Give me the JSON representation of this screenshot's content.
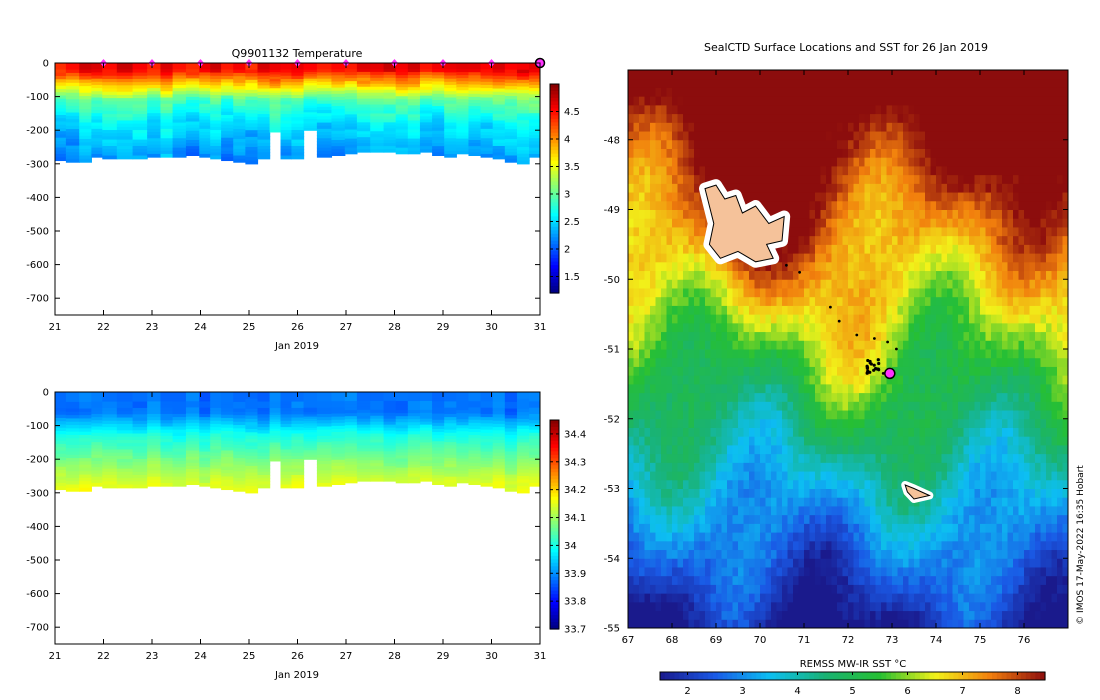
{
  "chart_data": [
    {
      "type": "heatmap",
      "title": "Q9901132  Temperature",
      "xlabel": "Jan 2019",
      "ylabel": "",
      "xlim": [
        21,
        31
      ],
      "ylim": [
        -750,
        0
      ],
      "x_ticks": [
        "21",
        "22",
        "23",
        "24",
        "25",
        "26",
        "27",
        "28",
        "29",
        "30",
        "31"
      ],
      "y_ticks": [
        "0",
        "-100",
        "-200",
        "-300",
        "-400",
        "-500",
        "-600",
        "-700"
      ],
      "colorbar_ticks": [
        "1.5",
        "2",
        "2.5",
        "3",
        "3.5",
        "4",
        "4.5"
      ],
      "colorbar_range": [
        1.2,
        5.0
      ],
      "surface_markers_x": [
        22,
        23,
        24,
        25,
        26,
        27,
        28,
        29,
        30,
        31
      ],
      "profile_x": [
        21.1,
        21.35,
        21.65,
        21.85,
        22.1,
        22.45,
        22.75,
        23.05,
        23.3,
        23.55,
        23.85,
        24.1,
        24.3,
        24.55,
        24.8,
        25.05,
        25.3,
        25.55,
        25.75,
        26.0,
        26.25,
        26.55,
        26.85,
        27.1,
        27.35,
        27.65,
        27.9,
        28.15,
        28.4,
        28.65,
        28.9,
        29.15,
        29.4,
        29.65,
        29.9,
        30.15,
        30.4,
        30.65,
        30.9
      ],
      "profile_depth": [
        -290,
        -295,
        -295,
        -280,
        -285,
        -285,
        -285,
        -280,
        -280,
        -280,
        -275,
        -280,
        -285,
        -290,
        -295,
        -300,
        -285,
        -205,
        -285,
        -285,
        -200,
        -280,
        -275,
        -270,
        -265,
        -265,
        -265,
        -270,
        -270,
        -265,
        -275,
        -280,
        -270,
        -275,
        -280,
        -285,
        -295,
        -300,
        -280
      ]
    },
    {
      "type": "heatmap",
      "title": "",
      "xlabel": "Jan 2019",
      "ylabel": "",
      "xlim": [
        21,
        31
      ],
      "ylim": [
        -750,
        0
      ],
      "x_ticks": [
        "21",
        "22",
        "23",
        "24",
        "25",
        "26",
        "27",
        "28",
        "29",
        "30",
        "31"
      ],
      "y_ticks": [
        "0",
        "-100",
        "-200",
        "-300",
        "-400",
        "-500",
        "-600",
        "-700"
      ],
      "colorbar_ticks": [
        "33.7",
        "33.8",
        "33.9",
        "34",
        "34.1",
        "34.2",
        "34.3",
        "34.4"
      ],
      "colorbar_range": [
        33.7,
        34.45
      ]
    },
    {
      "type": "heatmap",
      "title": "SealCTD Surface Locations and SST for 26 Jan 2019",
      "xlabel": "",
      "ylabel": "",
      "xlim": [
        67,
        77
      ],
      "ylim": [
        -55,
        -47
      ],
      "x_ticks": [
        "67",
        "68",
        "69",
        "70",
        "71",
        "72",
        "73",
        "74",
        "75",
        "76"
      ],
      "y_ticks": [
        "-48",
        "-49",
        "-50",
        "-51",
        "-52",
        "-53",
        "-54",
        "-55"
      ],
      "colorbar_label": "REMSS MW-IR SST °C",
      "colorbar_ticks": [
        "2",
        "3",
        "4",
        "5",
        "6",
        "7",
        "8"
      ],
      "colorbar_range": [
        1.5,
        8.5
      ],
      "surface_locations": [
        [
          70.6,
          -49.8
        ],
        [
          70.9,
          -49.9
        ],
        [
          71.6,
          -50.4
        ],
        [
          71.8,
          -50.6
        ],
        [
          72.2,
          -50.8
        ],
        [
          72.6,
          -50.85
        ],
        [
          72.9,
          -50.9
        ],
        [
          73.1,
          -51.0
        ],
        [
          72.5,
          -51.2
        ],
        [
          72.7,
          -51.3
        ],
        [
          72.8,
          -51.35
        ]
      ],
      "last_location": [
        72.95,
        -51.35
      ],
      "islands": [
        "Kerguelen",
        "Heard Island"
      ],
      "credit": "© IMOS 17-May-2022 16:35 Hobart"
    }
  ]
}
